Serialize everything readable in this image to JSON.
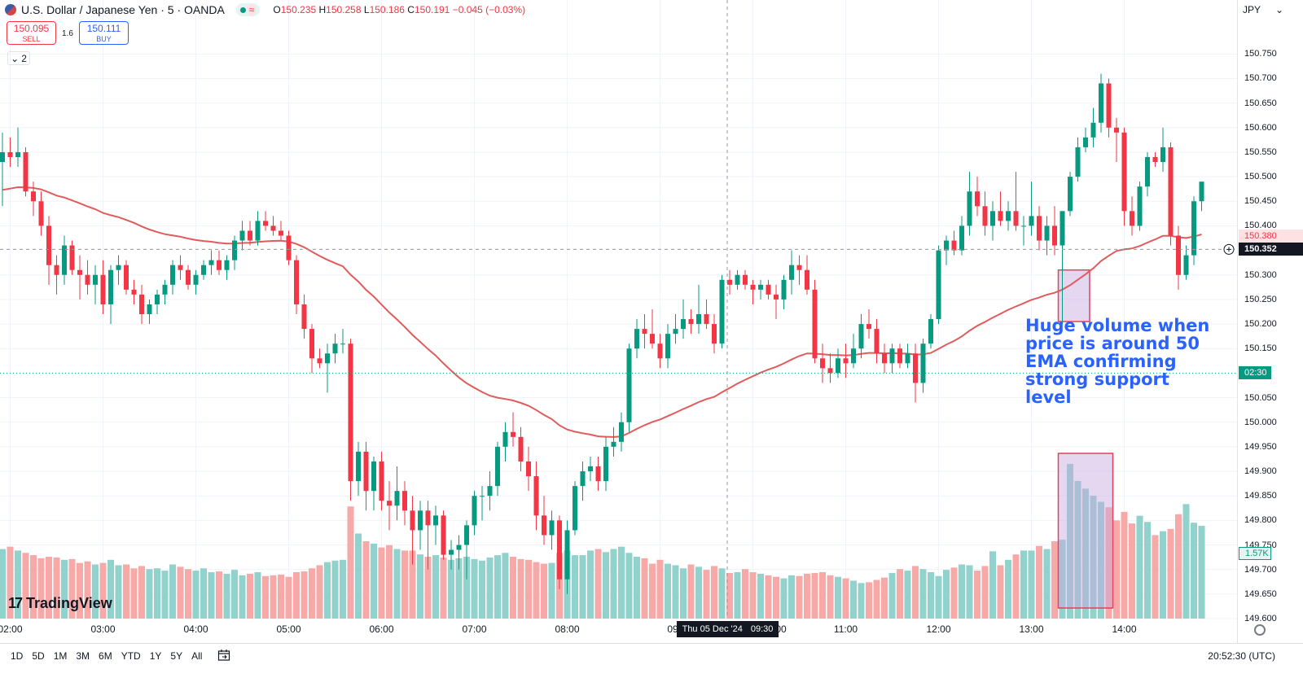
{
  "header": {
    "symbol": "U.S. Dollar / Japanese Yen · 5 · OANDA",
    "ohlc": {
      "o_label": "O",
      "o": "150.235",
      "h_label": "H",
      "h": "150.258",
      "l_label": "L",
      "l": "150.186",
      "c_label": "C",
      "c": "150.191",
      "change": "−0.045 (−0.03%)"
    }
  },
  "trade": {
    "sell_price": "150.095",
    "sell_label": "SELL",
    "spread": "1.6",
    "buy_price": "150.111",
    "buy_label": "BUY"
  },
  "indicators_count": "2",
  "currency": "JPY",
  "annotation": "Huge volume when price is around 50 EMA confirming strong support level",
  "brand": "TradingView",
  "time_ranges": [
    "1D",
    "5D",
    "1M",
    "3M",
    "6M",
    "YTD",
    "1Y",
    "5Y",
    "All"
  ],
  "clock": "20:52:30 (UTC)",
  "crosshair_time": {
    "day": "Thu 05 Dec '24",
    "time": "09:30"
  },
  "price_tags": {
    "ema": "150.380",
    "crosshair": "150.352",
    "countdown": "02:30",
    "volume": "1.57K"
  },
  "colors": {
    "up": "#089981",
    "down": "#f23645",
    "ema": "#e25b5b",
    "annotation": "#2962ff",
    "highlight": "#c7a6e0"
  },
  "chart_data": {
    "type": "candlestick",
    "symbol": "USDJPY",
    "interval": "5m",
    "y_range": [
      149.55,
      150.78
    ],
    "y_ticks": [
      150.75,
      150.7,
      150.65,
      150.6,
      150.55,
      150.5,
      150.45,
      150.4,
      150.3,
      150.25,
      150.2,
      150.15,
      150.05,
      150.0,
      149.95,
      149.9,
      149.85,
      149.8,
      149.75,
      149.7,
      149.65,
      149.6
    ],
    "y_tick_labels": [
      "150.750",
      "150.700",
      "150.650",
      "150.600",
      "150.550",
      "150.500",
      "150.450",
      "150.400",
      "150.300",
      "150.250",
      "150.200",
      "150.150",
      "150.050",
      "150.000",
      "149.950",
      "149.900",
      "149.850",
      "149.800",
      "149.750",
      "149.700",
      "149.650",
      "149.600"
    ],
    "x_labels": [
      "02:00",
      "03:00",
      "04:00",
      "05:00",
      "06:00",
      "07:00",
      "08:00",
      "09:00",
      "10:00",
      "11:00",
      "12:00",
      "13:00",
      "14:00"
    ],
    "x_label_offsets": [
      0,
      12,
      24,
      36,
      48,
      60,
      72,
      84,
      96,
      108,
      120,
      132,
      144
    ],
    "start_time": "01:55",
    "candles": [
      [
        150.53,
        150.59,
        150.44,
        150.55
      ],
      [
        150.55,
        150.58,
        150.52,
        150.54
      ],
      [
        150.54,
        150.6,
        150.52,
        150.55
      ],
      [
        150.55,
        150.56,
        150.46,
        150.47
      ],
      [
        150.47,
        150.49,
        150.42,
        150.45
      ],
      [
        150.45,
        150.47,
        150.38,
        150.4
      ],
      [
        150.4,
        150.42,
        150.28,
        150.32
      ],
      [
        150.32,
        150.34,
        150.26,
        150.3
      ],
      [
        150.3,
        150.38,
        150.28,
        150.36
      ],
      [
        150.36,
        150.37,
        150.3,
        150.31
      ],
      [
        150.31,
        150.34,
        150.25,
        150.3
      ],
      [
        150.3,
        150.33,
        150.26,
        150.28
      ],
      [
        150.28,
        150.32,
        150.24,
        150.3
      ],
      [
        150.3,
        150.33,
        150.22,
        150.24
      ],
      [
        150.24,
        150.32,
        150.2,
        150.31
      ],
      [
        150.31,
        150.34,
        150.28,
        150.32
      ],
      [
        150.32,
        150.33,
        150.26,
        150.27
      ],
      [
        150.27,
        150.29,
        150.24,
        150.26
      ],
      [
        150.26,
        150.28,
        150.2,
        150.22
      ],
      [
        150.22,
        150.25,
        150.2,
        150.24
      ],
      [
        150.24,
        150.27,
        150.22,
        150.26
      ],
      [
        150.26,
        150.29,
        150.24,
        150.28
      ],
      [
        150.28,
        150.33,
        150.26,
        150.32
      ],
      [
        150.32,
        150.34,
        150.29,
        150.31
      ],
      [
        150.31,
        150.32,
        150.27,
        150.28
      ],
      [
        150.28,
        150.31,
        150.26,
        150.3
      ],
      [
        150.3,
        150.33,
        150.29,
        150.32
      ],
      [
        150.32,
        150.35,
        150.3,
        150.33
      ],
      [
        150.33,
        150.35,
        150.3,
        150.31
      ],
      [
        150.31,
        150.34,
        150.29,
        150.33
      ],
      [
        150.33,
        150.38,
        150.31,
        150.37
      ],
      [
        150.37,
        150.41,
        150.35,
        150.39
      ],
      [
        150.39,
        150.41,
        150.36,
        150.37
      ],
      [
        150.37,
        150.43,
        150.36,
        150.41
      ],
      [
        150.41,
        150.43,
        150.39,
        150.4
      ],
      [
        150.4,
        150.42,
        150.38,
        150.39
      ],
      [
        150.39,
        150.41,
        150.37,
        150.38
      ],
      [
        150.38,
        150.39,
        150.32,
        150.33
      ],
      [
        150.33,
        150.34,
        150.22,
        150.24
      ],
      [
        150.24,
        150.26,
        150.17,
        150.19
      ],
      [
        150.19,
        150.2,
        150.1,
        150.13
      ],
      [
        150.13,
        150.15,
        150.11,
        150.12
      ],
      [
        150.12,
        150.16,
        150.06,
        150.14
      ],
      [
        150.14,
        150.18,
        150.12,
        150.16
      ],
      [
        150.16,
        150.19,
        150.14,
        150.16
      ],
      [
        150.16,
        150.17,
        149.84,
        149.88
      ],
      [
        149.88,
        149.96,
        149.85,
        149.94
      ],
      [
        149.94,
        149.96,
        149.82,
        149.86
      ],
      [
        149.86,
        149.93,
        149.82,
        149.92
      ],
      [
        149.92,
        149.94,
        149.82,
        149.84
      ],
      [
        149.84,
        149.88,
        149.78,
        149.83
      ],
      [
        149.83,
        149.91,
        149.8,
        149.86
      ],
      [
        149.86,
        149.88,
        149.79,
        149.82
      ],
      [
        149.82,
        149.85,
        149.71,
        149.78
      ],
      [
        149.78,
        149.84,
        149.74,
        149.82
      ],
      [
        149.82,
        149.84,
        149.7,
        149.79
      ],
      [
        149.79,
        149.83,
        149.75,
        149.81
      ],
      [
        149.81,
        149.82,
        149.72,
        149.73
      ],
      [
        149.73,
        149.76,
        149.7,
        149.74
      ],
      [
        149.74,
        149.77,
        149.7,
        149.75
      ],
      [
        149.75,
        149.8,
        149.68,
        149.79
      ],
      [
        149.79,
        149.86,
        149.77,
        149.85
      ],
      [
        149.85,
        149.87,
        149.8,
        149.85
      ],
      [
        149.85,
        149.9,
        149.82,
        149.87
      ],
      [
        149.87,
        149.96,
        149.85,
        149.95
      ],
      [
        149.95,
        150.0,
        149.92,
        149.98
      ],
      [
        149.98,
        150.02,
        149.95,
        149.97
      ],
      [
        149.97,
        149.99,
        149.9,
        149.92
      ],
      [
        149.92,
        149.95,
        149.86,
        149.89
      ],
      [
        149.89,
        149.92,
        149.78,
        149.81
      ],
      [
        149.81,
        149.85,
        149.75,
        149.77
      ],
      [
        149.77,
        149.82,
        149.74,
        149.8
      ],
      [
        149.8,
        149.81,
        149.66,
        149.68
      ],
      [
        149.68,
        149.8,
        149.65,
        149.78
      ],
      [
        149.78,
        149.88,
        149.77,
        149.87
      ],
      [
        149.87,
        149.92,
        149.84,
        149.9
      ],
      [
        149.9,
        149.93,
        149.88,
        149.91
      ],
      [
        149.91,
        149.93,
        149.86,
        149.88
      ],
      [
        149.88,
        149.97,
        149.86,
        149.95
      ],
      [
        149.95,
        149.99,
        149.93,
        149.96
      ],
      [
        149.96,
        150.02,
        149.94,
        150.0
      ],
      [
        150.0,
        150.16,
        149.98,
        150.15
      ],
      [
        150.15,
        150.21,
        150.13,
        150.19
      ],
      [
        150.19,
        150.22,
        150.15,
        150.18
      ],
      [
        150.18,
        150.23,
        150.15,
        150.16
      ],
      [
        150.16,
        150.18,
        150.11,
        150.13
      ],
      [
        150.13,
        150.2,
        150.11,
        150.18
      ],
      [
        150.18,
        150.22,
        150.16,
        150.19
      ],
      [
        150.19,
        150.25,
        150.17,
        150.21
      ],
      [
        150.21,
        150.23,
        150.18,
        150.2
      ],
      [
        150.2,
        150.28,
        150.18,
        150.22
      ],
      [
        150.22,
        150.25,
        150.19,
        150.2
      ],
      [
        150.2,
        150.22,
        150.14,
        150.16
      ],
      [
        150.16,
        150.3,
        150.15,
        150.29
      ],
      [
        150.29,
        150.31,
        150.26,
        150.28
      ],
      [
        150.28,
        150.31,
        150.27,
        150.3
      ],
      [
        150.3,
        150.31,
        150.27,
        150.28
      ],
      [
        150.28,
        150.29,
        150.24,
        150.27
      ],
      [
        150.27,
        150.29,
        150.25,
        150.28
      ],
      [
        150.28,
        150.29,
        150.25,
        150.26
      ],
      [
        150.26,
        150.28,
        150.21,
        150.25
      ],
      [
        150.25,
        150.3,
        150.23,
        150.29
      ],
      [
        150.29,
        150.35,
        150.26,
        150.32
      ],
      [
        150.32,
        150.34,
        150.28,
        150.31
      ],
      [
        150.31,
        150.34,
        150.26,
        150.27
      ],
      [
        150.27,
        150.29,
        150.12,
        150.13
      ],
      [
        150.13,
        150.16,
        150.08,
        150.11
      ],
      [
        150.11,
        150.14,
        150.08,
        150.1
      ],
      [
        150.1,
        150.15,
        150.09,
        150.13
      ],
      [
        150.13,
        150.16,
        150.09,
        150.12
      ],
      [
        150.12,
        150.18,
        150.11,
        150.15
      ],
      [
        150.15,
        150.22,
        150.13,
        150.2
      ],
      [
        150.2,
        150.23,
        150.17,
        150.19
      ],
      [
        150.19,
        150.21,
        150.12,
        150.14
      ],
      [
        150.14,
        150.16,
        150.1,
        150.12
      ],
      [
        150.12,
        150.16,
        150.1,
        150.15
      ],
      [
        150.15,
        150.16,
        150.11,
        150.12
      ],
      [
        150.12,
        150.16,
        150.11,
        150.14
      ],
      [
        150.14,
        150.16,
        150.04,
        150.08
      ],
      [
        150.08,
        150.17,
        150.06,
        150.16
      ],
      [
        150.16,
        150.22,
        150.15,
        150.21
      ],
      [
        150.21,
        150.36,
        150.2,
        150.35
      ],
      [
        150.35,
        150.38,
        150.32,
        150.37
      ],
      [
        150.37,
        150.39,
        150.34,
        150.35
      ],
      [
        150.35,
        150.42,
        150.34,
        150.4
      ],
      [
        150.4,
        150.51,
        150.38,
        150.47
      ],
      [
        150.47,
        150.5,
        150.42,
        150.44
      ],
      [
        150.44,
        150.47,
        150.38,
        150.4
      ],
      [
        150.4,
        150.45,
        150.37,
        150.43
      ],
      [
        150.43,
        150.47,
        150.4,
        150.41
      ],
      [
        150.41,
        150.45,
        150.39,
        150.43
      ],
      [
        150.43,
        150.51,
        150.39,
        150.4
      ],
      [
        150.4,
        150.42,
        150.36,
        150.4
      ],
      [
        150.4,
        150.49,
        150.38,
        150.42
      ],
      [
        150.42,
        150.44,
        150.35,
        150.37
      ],
      [
        150.37,
        150.42,
        150.34,
        150.4
      ],
      [
        150.4,
        150.44,
        150.34,
        150.36
      ],
      [
        150.36,
        150.42,
        150.2,
        150.43
      ],
      [
        150.43,
        150.51,
        150.42,
        150.5
      ],
      [
        150.5,
        150.58,
        150.49,
        150.56
      ],
      [
        150.56,
        150.6,
        150.55,
        150.58
      ],
      [
        150.58,
        150.64,
        150.56,
        150.61
      ],
      [
        150.61,
        150.71,
        150.59,
        150.69
      ],
      [
        150.69,
        150.7,
        150.58,
        150.6
      ],
      [
        150.6,
        150.62,
        150.53,
        150.59
      ],
      [
        150.59,
        150.6,
        150.4,
        150.43
      ],
      [
        150.43,
        150.46,
        150.38,
        150.4
      ],
      [
        150.4,
        150.49,
        150.39,
        150.48
      ],
      [
        150.48,
        150.55,
        150.46,
        150.54
      ],
      [
        150.54,
        150.55,
        150.52,
        150.53
      ],
      [
        150.53,
        150.6,
        150.51,
        150.56
      ],
      [
        150.56,
        150.57,
        150.36,
        150.38
      ],
      [
        150.38,
        150.4,
        150.27,
        150.3
      ],
      [
        150.3,
        150.36,
        150.29,
        150.34
      ],
      [
        150.34,
        150.46,
        150.32,
        150.45
      ],
      [
        150.45,
        150.48,
        150.43,
        150.49
      ]
    ],
    "volume": [
      900,
      930,
      880,
      850,
      820,
      780,
      800,
      790,
      760,
      770,
      720,
      740,
      700,
      720,
      760,
      690,
      700,
      650,
      680,
      640,
      650,
      620,
      700,
      670,
      640,
      620,
      650,
      600,
      610,
      580,
      630,
      560,
      580,
      600,
      550,
      560,
      570,
      540,
      600,
      610,
      650,
      690,
      730,
      750,
      760,
      1450,
      1100,
      1000,
      970,
      920,
      950,
      900,
      880,
      880,
      830,
      800,
      820,
      790,
      760,
      780,
      800,
      770,
      750,
      790,
      820,
      850,
      800,
      770,
      760,
      730,
      710,
      720,
      850,
      880,
      820,
      820,
      880,
      900,
      860,
      900,
      930,
      850,
      800,
      780,
      710,
      760,
      710,
      690,
      650,
      700,
      670,
      630,
      680,
      650,
      590,
      600,
      640,
      600,
      580,
      560,
      540,
      520,
      560,
      550,
      580,
      590,
      600,
      560,
      540,
      520,
      490,
      460,
      470,
      500,
      530,
      590,
      640,
      620,
      680,
      640,
      600,
      550,
      630,
      660,
      700,
      690,
      620,
      680,
      870,
      690,
      760,
      830,
      880,
      880,
      940,
      900,
      1000,
      1020,
      2000,
      1780,
      1680,
      1590,
      1510,
      1440,
      1270,
      1380,
      1230,
      1330,
      1250,
      1080,
      1130,
      1160,
      1350,
      1480,
      1240,
      1200
    ],
    "ema_period": 50,
    "highlight_candle_range": [
      137,
      140
    ],
    "highlight_volume_range": [
      137,
      143
    ]
  }
}
